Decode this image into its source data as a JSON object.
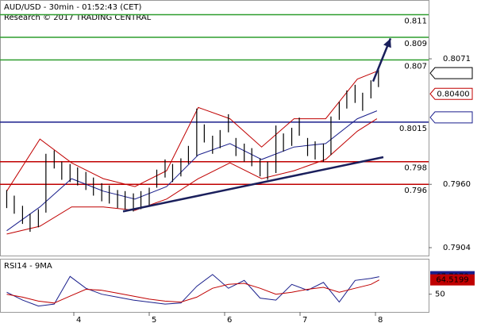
{
  "chart_data": [
    {
      "type": "range-bar",
      "title": "AUD/USD - 30min - 01:52:43 (CET)",
      "subtitle": "Research © 2017 TRADING CENTRAL",
      "color": "#000000",
      "x": [
        3.11,
        3.21,
        3.32,
        3.42,
        3.53,
        3.63,
        3.74,
        3.84,
        3.95,
        4.05,
        4.16,
        4.26,
        4.37,
        4.47,
        4.58,
        4.68,
        4.79,
        4.89,
        5.0,
        5.1,
        5.21,
        5.31,
        5.42,
        5.52,
        5.63,
        5.73,
        5.84,
        5.94,
        6.05,
        6.15,
        6.26,
        6.36,
        6.47,
        6.57,
        6.68,
        6.78,
        6.89,
        6.99,
        7.1,
        7.2,
        7.31,
        7.41,
        7.52,
        7.62,
        7.73,
        7.83,
        7.94,
        8.04
      ],
      "high": [
        0.7955,
        0.795,
        0.7941,
        0.7934,
        0.7938,
        0.7987,
        0.799,
        0.798,
        0.7978,
        0.7975,
        0.7971,
        0.7966,
        0.7961,
        0.7959,
        0.7955,
        0.7954,
        0.7952,
        0.7954,
        0.7957,
        0.7973,
        0.7982,
        0.7978,
        0.7983,
        0.7994,
        0.8027,
        0.8013,
        0.8003,
        0.8008,
        0.8022,
        0.8001,
        0.7996,
        0.7992,
        0.7983,
        0.798,
        0.8012,
        0.8005,
        0.801,
        0.8019,
        0.8001,
        0.7998,
        0.7996,
        0.802,
        0.8033,
        0.8043,
        0.8048,
        0.8041,
        0.8052,
        0.8062
      ],
      "low": [
        0.7939,
        0.7934,
        0.7925,
        0.7918,
        0.7922,
        0.7935,
        0.7974,
        0.7964,
        0.7962,
        0.7959,
        0.7955,
        0.795,
        0.7945,
        0.7943,
        0.7939,
        0.7938,
        0.7936,
        0.7938,
        0.7941,
        0.7957,
        0.7966,
        0.7962,
        0.7967,
        0.7978,
        0.7985,
        0.7997,
        0.7987,
        0.7992,
        0.8006,
        0.7985,
        0.798,
        0.7976,
        0.7967,
        0.7964,
        0.797,
        0.7989,
        0.7994,
        0.8003,
        0.7985,
        0.7982,
        0.798,
        0.7986,
        0.8017,
        0.8027,
        0.8032,
        0.8025,
        0.8036,
        0.8046
      ],
      "lines": [
        {
          "color": "#c00000",
          "x": [
            3.11,
            3.55,
            3.97,
            4.39,
            4.81,
            5.23,
            5.65,
            6.07,
            6.49,
            6.92,
            7.34,
            7.76,
            8.02
          ],
          "values": [
            0.7954,
            0.8,
            0.7979,
            0.7965,
            0.7958,
            0.7972,
            0.8028,
            0.8018,
            0.7993,
            0.8018,
            0.8018,
            0.8053,
            0.806
          ]
        },
        {
          "color": "#1a1f8c",
          "x": [
            3.11,
            3.55,
            3.97,
            4.39,
            4.81,
            5.23,
            5.65,
            6.07,
            6.49,
            6.92,
            7.34,
            7.76,
            8.02
          ],
          "values": [
            0.7919,
            0.794,
            0.7965,
            0.7954,
            0.7947,
            0.7958,
            0.7986,
            0.7996,
            0.7982,
            0.7993,
            0.7996,
            0.8018,
            0.8025
          ]
        },
        {
          "color": "#c00000",
          "x": [
            3.11,
            3.55,
            3.97,
            4.39,
            4.81,
            5.23,
            5.65,
            6.07,
            6.49,
            6.92,
            7.34,
            7.76,
            8.02
          ],
          "values": [
            0.7916,
            0.7923,
            0.794,
            0.794,
            0.7937,
            0.7947,
            0.7965,
            0.7979,
            0.7965,
            0.7972,
            0.7982,
            0.8007,
            0.8018
          ]
        }
      ],
      "trendline": {
        "color": "#1a1f5c",
        "x": [
          4.653,
          8.105
        ],
        "values": [
          0.7936,
          0.7984
        ]
      },
      "arrow": {
        "color": "#1a1f5c",
        "x": [
          7.968,
          8.2
        ],
        "values": [
          0.8051,
          0.8089
        ]
      },
      "levels": [
        {
          "value": 0.811,
          "color": "#2e9e2e"
        },
        {
          "value": 0.809,
          "color": "#2e9e2e"
        },
        {
          "value": 0.807,
          "color": "#2e9e2e"
        },
        {
          "value": 0.8015,
          "color": "#1a1f8c"
        },
        {
          "value": 0.798,
          "color": "#c00000"
        },
        {
          "value": 0.796,
          "color": "#c00000"
        }
      ],
      "price_tags": [
        {
          "value": 0.80583,
          "color": "#000000"
        },
        {
          "value": 0.804,
          "label": "0.80400",
          "color": "#c00000"
        },
        {
          "value": 0.80192,
          "color": "#1a1f8c"
        }
      ],
      "xlim": [
        3.021,
        8.705
      ],
      "ylim": [
        0.7897,
        0.8123
      ],
      "yticks": [
        0.8071,
        {
          "value": 0.796,
          "label": "0.7960"
        },
        0.7904
      ],
      "xticks": [
        4,
        5,
        6,
        7,
        8
      ]
    },
    {
      "type": "line",
      "title": "RSI14 - 9MA",
      "x": [
        3.11,
        3.32,
        3.53,
        3.74,
        3.95,
        4.16,
        4.37,
        4.58,
        4.79,
        5.0,
        5.21,
        5.42,
        5.63,
        5.84,
        6.05,
        6.26,
        6.47,
        6.68,
        6.89,
        7.1,
        7.31,
        7.52,
        7.73,
        7.94,
        8.05
      ],
      "series": [
        {
          "color": "#1a1f8c",
          "values": [
            52,
            44,
            38,
            40,
            68,
            56,
            50,
            47,
            44,
            42,
            40,
            41,
            58,
            70,
            56,
            64,
            46,
            44,
            60,
            54,
            62,
            42,
            64,
            66,
            67.7978
          ]
        },
        {
          "color": "#c00000",
          "values": [
            50,
            47,
            43,
            41,
            48,
            55,
            54,
            51,
            48,
            45,
            43,
            42,
            47,
            56,
            60,
            61,
            56,
            50,
            52,
            55,
            57,
            52,
            56,
            60,
            64.5199
          ]
        }
      ],
      "xlim": [
        3.021,
        8.705
      ],
      "ylim": [
        32,
        86
      ],
      "yticks": [
        50
      ]
    }
  ]
}
